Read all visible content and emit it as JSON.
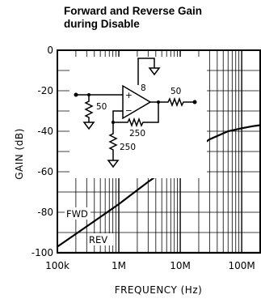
{
  "chart_data": {
    "type": "line",
    "title": "Forward and Reverse Gain",
    "subtitle": "during Disable",
    "xlabel": "FREQUENCY (Hz)",
    "ylabel": "GAIN (dB)",
    "xscale": "log",
    "xlim": [
      100000,
      200000000
    ],
    "ylim": [
      -100,
      0
    ],
    "x_ticks": [
      100000,
      1000000,
      10000000,
      100000000
    ],
    "x_tick_labels": [
      "100k",
      "1M",
      "10M",
      "100M"
    ],
    "y_ticks": [
      0,
      -20,
      -40,
      -60,
      -80,
      -100
    ],
    "y_tick_labels": [
      "0",
      "-20",
      "-40",
      "-60",
      "-80",
      "-100"
    ],
    "grid": true,
    "series": [
      {
        "name": "FWD",
        "x": [
          100000,
          300000,
          1000000,
          3000000,
          10000000,
          30000000,
          60000000,
          100000000,
          150000000,
          200000000
        ],
        "y": [
          -97,
          -87,
          -76,
          -65,
          -54,
          -44,
          -40,
          -38.5,
          -37.5,
          -37
        ]
      },
      {
        "name": "REV",
        "x": [
          100000,
          200000000
        ],
        "y": [
          -100,
          -100
        ]
      }
    ],
    "annotations": {
      "fwd_label": "FWD",
      "rev_label": "REV",
      "circuit": {
        "pin_label": "8",
        "r_in": "50",
        "r_out": "50",
        "r_feedback": "250",
        "r_ground": "250",
        "plus": "+",
        "minus": "−"
      }
    }
  }
}
